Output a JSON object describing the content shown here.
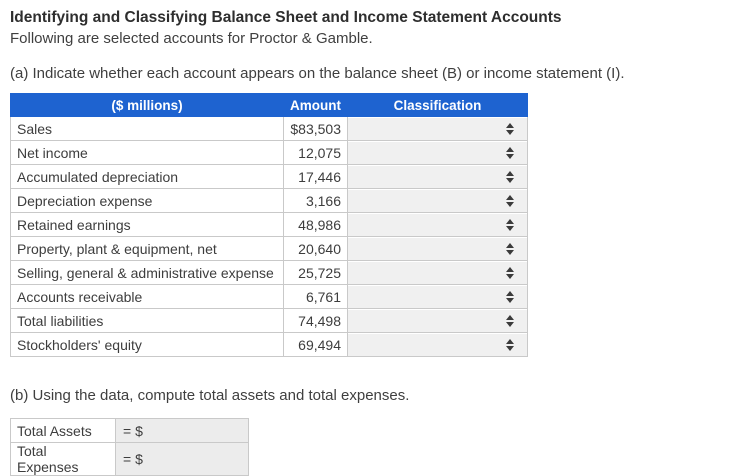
{
  "page": {
    "title": "Identifying and Classifying Balance Sheet and Income Statement Accounts",
    "subtitle": "Following are selected accounts for Proctor & Gamble.",
    "part_a_prompt": "(a) Indicate whether each account appears on the balance sheet (B) or income statement (I).",
    "part_b_prompt": "(b) Using the data, compute total assets and total expenses."
  },
  "accounts_table": {
    "headers": [
      "($ millions)",
      "Amount",
      "Classification"
    ],
    "rows": [
      {
        "account": "Sales",
        "amount": "$83,503",
        "classification": ""
      },
      {
        "account": "Net income",
        "amount": "12,075",
        "classification": ""
      },
      {
        "account": "Accumulated depreciation",
        "amount": "17,446",
        "classification": ""
      },
      {
        "account": "Depreciation expense",
        "amount": "3,166",
        "classification": ""
      },
      {
        "account": "Retained earnings",
        "amount": "48,986",
        "classification": ""
      },
      {
        "account": "Property, plant & equipment, net",
        "amount": "20,640",
        "classification": ""
      },
      {
        "account": "Selling, general & administrative expense",
        "amount": "25,725",
        "classification": ""
      },
      {
        "account": "Accounts receivable",
        "amount": "6,761",
        "classification": ""
      },
      {
        "account": "Total liabilities",
        "amount": "74,498",
        "classification": ""
      },
      {
        "account": "Stockholders' equity",
        "amount": "69,494",
        "classification": ""
      }
    ]
  },
  "totals_table": {
    "rows": [
      {
        "label": "Total Assets",
        "prefix": "= $",
        "value": ""
      },
      {
        "label": "Total Expenses",
        "prefix": "= $",
        "value": ""
      }
    ]
  },
  "icons": {
    "classification_dropdown": "up-down-arrows-icon"
  },
  "colors": {
    "header_bg": "#1e63d0",
    "header_text": "#ffffff",
    "select_bg": "#f0f0f0",
    "input_cell_bg": "#ececec",
    "table_border": "#c9c9c9",
    "body_text": "#3f3f3f"
  }
}
